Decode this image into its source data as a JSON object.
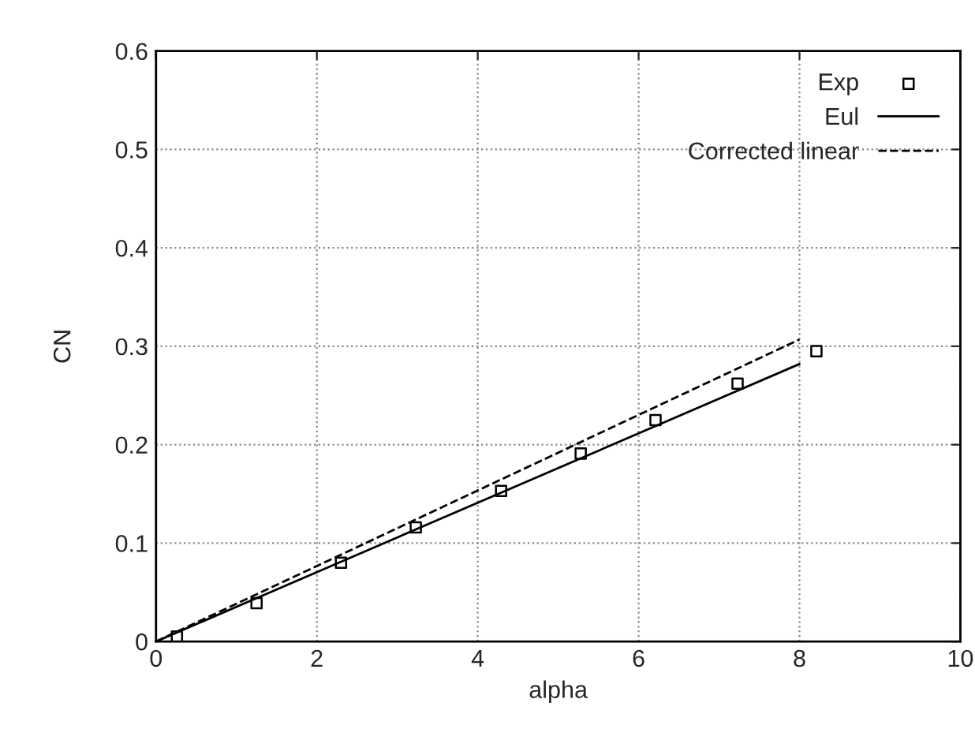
{
  "chart_data": {
    "type": "line",
    "xlabel": "alpha",
    "ylabel": "CN",
    "xlim": [
      0,
      10
    ],
    "xticks": [
      0,
      2,
      4,
      6,
      8,
      10
    ],
    "ylim": [
      0,
      0.6
    ],
    "yticks": [
      0,
      0.1,
      0.2,
      0.3,
      0.4,
      0.5,
      0.6
    ],
    "grid": true,
    "legend": "top right",
    "series": [
      {
        "name": "Exp",
        "type": "scatter",
        "marker": "square",
        "color": "#000000",
        "x": [
          0.26,
          1.25,
          2.3,
          3.23,
          4.29,
          5.28,
          6.21,
          7.23,
          8.21
        ],
        "values": [
          0.005,
          0.039,
          0.08,
          0.116,
          0.153,
          0.191,
          0.225,
          0.262,
          0.295
        ]
      },
      {
        "name": "Eul",
        "line_style": "solid",
        "color": "#000000",
        "x": [
          0,
          8
        ],
        "values": [
          0,
          0.282
        ]
      },
      {
        "name": "Corrected linear",
        "line_style": "dashed",
        "color": "#000000",
        "x": [
          0,
          8
        ],
        "values": [
          0,
          0.307
        ]
      }
    ]
  }
}
